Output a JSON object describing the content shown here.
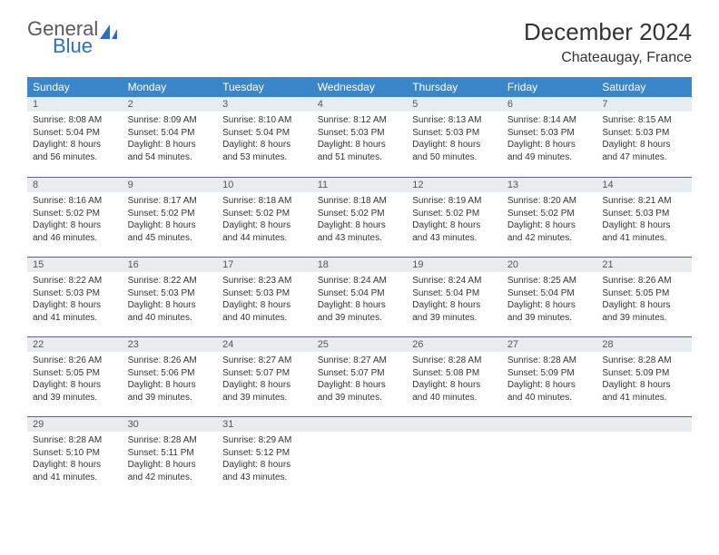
{
  "brand": {
    "line1": "General",
    "line2": "Blue"
  },
  "title": "December 2024",
  "location": "Chateaugay, France",
  "colors": {
    "header_bg": "#3a86c8",
    "header_text": "#ffffff",
    "daynum_bg": "#e8ecef",
    "rule": "#2d6fb8",
    "body_text": "#333333",
    "brand_gray": "#5a5a5a",
    "brand_blue": "#2d6fb8"
  },
  "weekdays": [
    "Sunday",
    "Monday",
    "Tuesday",
    "Wednesday",
    "Thursday",
    "Friday",
    "Saturday"
  ],
  "weeks": [
    [
      {
        "n": "1",
        "sr": "8:08 AM",
        "ss": "5:04 PM",
        "dl": "8 hours and 56 minutes."
      },
      {
        "n": "2",
        "sr": "8:09 AM",
        "ss": "5:04 PM",
        "dl": "8 hours and 54 minutes."
      },
      {
        "n": "3",
        "sr": "8:10 AM",
        "ss": "5:04 PM",
        "dl": "8 hours and 53 minutes."
      },
      {
        "n": "4",
        "sr": "8:12 AM",
        "ss": "5:03 PM",
        "dl": "8 hours and 51 minutes."
      },
      {
        "n": "5",
        "sr": "8:13 AM",
        "ss": "5:03 PM",
        "dl": "8 hours and 50 minutes."
      },
      {
        "n": "6",
        "sr": "8:14 AM",
        "ss": "5:03 PM",
        "dl": "8 hours and 49 minutes."
      },
      {
        "n": "7",
        "sr": "8:15 AM",
        "ss": "5:03 PM",
        "dl": "8 hours and 47 minutes."
      }
    ],
    [
      {
        "n": "8",
        "sr": "8:16 AM",
        "ss": "5:02 PM",
        "dl": "8 hours and 46 minutes."
      },
      {
        "n": "9",
        "sr": "8:17 AM",
        "ss": "5:02 PM",
        "dl": "8 hours and 45 minutes."
      },
      {
        "n": "10",
        "sr": "8:18 AM",
        "ss": "5:02 PM",
        "dl": "8 hours and 44 minutes."
      },
      {
        "n": "11",
        "sr": "8:18 AM",
        "ss": "5:02 PM",
        "dl": "8 hours and 43 minutes."
      },
      {
        "n": "12",
        "sr": "8:19 AM",
        "ss": "5:02 PM",
        "dl": "8 hours and 43 minutes."
      },
      {
        "n": "13",
        "sr": "8:20 AM",
        "ss": "5:02 PM",
        "dl": "8 hours and 42 minutes."
      },
      {
        "n": "14",
        "sr": "8:21 AM",
        "ss": "5:03 PM",
        "dl": "8 hours and 41 minutes."
      }
    ],
    [
      {
        "n": "15",
        "sr": "8:22 AM",
        "ss": "5:03 PM",
        "dl": "8 hours and 41 minutes."
      },
      {
        "n": "16",
        "sr": "8:22 AM",
        "ss": "5:03 PM",
        "dl": "8 hours and 40 minutes."
      },
      {
        "n": "17",
        "sr": "8:23 AM",
        "ss": "5:03 PM",
        "dl": "8 hours and 40 minutes."
      },
      {
        "n": "18",
        "sr": "8:24 AM",
        "ss": "5:04 PM",
        "dl": "8 hours and 39 minutes."
      },
      {
        "n": "19",
        "sr": "8:24 AM",
        "ss": "5:04 PM",
        "dl": "8 hours and 39 minutes."
      },
      {
        "n": "20",
        "sr": "8:25 AM",
        "ss": "5:04 PM",
        "dl": "8 hours and 39 minutes."
      },
      {
        "n": "21",
        "sr": "8:26 AM",
        "ss": "5:05 PM",
        "dl": "8 hours and 39 minutes."
      }
    ],
    [
      {
        "n": "22",
        "sr": "8:26 AM",
        "ss": "5:05 PM",
        "dl": "8 hours and 39 minutes."
      },
      {
        "n": "23",
        "sr": "8:26 AM",
        "ss": "5:06 PM",
        "dl": "8 hours and 39 minutes."
      },
      {
        "n": "24",
        "sr": "8:27 AM",
        "ss": "5:07 PM",
        "dl": "8 hours and 39 minutes."
      },
      {
        "n": "25",
        "sr": "8:27 AM",
        "ss": "5:07 PM",
        "dl": "8 hours and 39 minutes."
      },
      {
        "n": "26",
        "sr": "8:28 AM",
        "ss": "5:08 PM",
        "dl": "8 hours and 40 minutes."
      },
      {
        "n": "27",
        "sr": "8:28 AM",
        "ss": "5:09 PM",
        "dl": "8 hours and 40 minutes."
      },
      {
        "n": "28",
        "sr": "8:28 AM",
        "ss": "5:09 PM",
        "dl": "8 hours and 41 minutes."
      }
    ],
    [
      {
        "n": "29",
        "sr": "8:28 AM",
        "ss": "5:10 PM",
        "dl": "8 hours and 41 minutes."
      },
      {
        "n": "30",
        "sr": "8:28 AM",
        "ss": "5:11 PM",
        "dl": "8 hours and 42 minutes."
      },
      {
        "n": "31",
        "sr": "8:29 AM",
        "ss": "5:12 PM",
        "dl": "8 hours and 43 minutes."
      },
      null,
      null,
      null,
      null
    ]
  ],
  "labels": {
    "sunrise": "Sunrise:",
    "sunset": "Sunset:",
    "daylight": "Daylight:"
  }
}
